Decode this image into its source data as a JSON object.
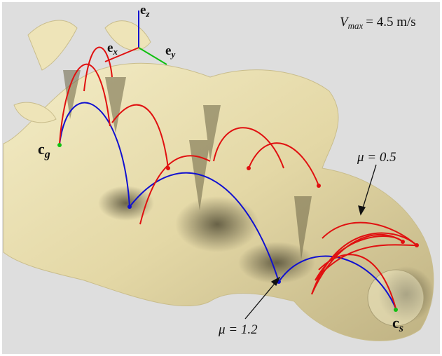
{
  "figure": {
    "speed_label": {
      "symbol": "V",
      "subscript": "max",
      "rest": "= 4.5 m/s"
    },
    "axes": {
      "z": {
        "symbol": "e",
        "subscript": "z"
      },
      "x": {
        "symbol": "e",
        "subscript": "x"
      },
      "y": {
        "symbol": "e",
        "subscript": "y"
      }
    },
    "goal": {
      "symbol": "c",
      "subscript": "g"
    },
    "start": {
      "symbol": "c",
      "subscript": "s"
    },
    "annotations": [
      {
        "text": "μ = 1.2"
      },
      {
        "text": "μ = 0.5"
      }
    ]
  }
}
